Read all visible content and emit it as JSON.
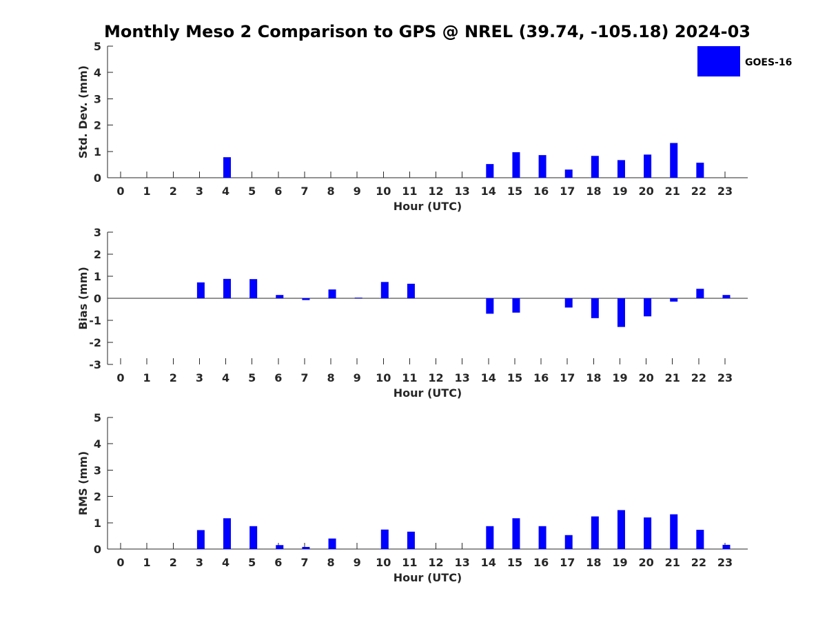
{
  "title": "Monthly Meso 2 Comparison to GPS @ NREL (39.74, -105.18) 2024-03",
  "legend": {
    "label": "GOES-16",
    "color": "#0000ff",
    "placement": "top-right"
  },
  "chart_data": [
    {
      "type": "bar",
      "xlabel": "Hour (UTC)",
      "ylabel": "Std. Dev. (mm)",
      "categories": [
        "0",
        "1",
        "2",
        "3",
        "4",
        "5",
        "6",
        "7",
        "8",
        "9",
        "10",
        "11",
        "12",
        "13",
        "14",
        "15",
        "16",
        "17",
        "18",
        "19",
        "20",
        "21",
        "22",
        "23"
      ],
      "series": [
        {
          "name": "GOES-16",
          "color": "#0000ff",
          "values": [
            0,
            0,
            0,
            0,
            0.78,
            0,
            0,
            0,
            0,
            0,
            0,
            0,
            0,
            0,
            0.52,
            0.97,
            0.86,
            0.31,
            0.83,
            0.67,
            0.88,
            1.32,
            0.57,
            0
          ]
        }
      ],
      "ylim": [
        0,
        5
      ],
      "yticks": [
        0,
        1,
        2,
        3,
        4,
        5
      ],
      "grid": false
    },
    {
      "type": "bar",
      "xlabel": "Hour (UTC)",
      "ylabel": "Bias (mm)",
      "categories": [
        "0",
        "1",
        "2",
        "3",
        "4",
        "5",
        "6",
        "7",
        "8",
        "9",
        "10",
        "11",
        "12",
        "13",
        "14",
        "15",
        "16",
        "17",
        "18",
        "19",
        "20",
        "21",
        "22",
        "23"
      ],
      "series": [
        {
          "name": "GOES-16",
          "color": "#0000ff",
          "values": [
            0,
            0,
            0,
            0.72,
            0.88,
            0.87,
            0.15,
            -0.08,
            0.4,
            0.03,
            0.74,
            0.66,
            0,
            0,
            -0.7,
            -0.65,
            0,
            -0.42,
            -0.9,
            -1.3,
            -0.82,
            -0.15,
            0.43,
            0.15
          ]
        }
      ],
      "ylim": [
        -3,
        3
      ],
      "yticks": [
        -3,
        -2,
        -1,
        0,
        1,
        2,
        3
      ],
      "grid": false
    },
    {
      "type": "bar",
      "xlabel": "Hour (UTC)",
      "ylabel": "RMS (mm)",
      "categories": [
        "0",
        "1",
        "2",
        "3",
        "4",
        "5",
        "6",
        "7",
        "8",
        "9",
        "10",
        "11",
        "12",
        "13",
        "14",
        "15",
        "16",
        "17",
        "18",
        "19",
        "20",
        "21",
        "22",
        "23"
      ],
      "series": [
        {
          "name": "GOES-16",
          "color": "#0000ff",
          "values": [
            0,
            0,
            0,
            0.72,
            1.17,
            0.87,
            0.15,
            0.08,
            0.4,
            0,
            0.74,
            0.66,
            0,
            0,
            0.87,
            1.17,
            0.87,
            0.53,
            1.24,
            1.48,
            1.2,
            1.32,
            0.73,
            0.16
          ]
        }
      ],
      "ylim": [
        0,
        5
      ],
      "yticks": [
        0,
        1,
        2,
        3,
        4,
        5
      ],
      "grid": false
    }
  ]
}
